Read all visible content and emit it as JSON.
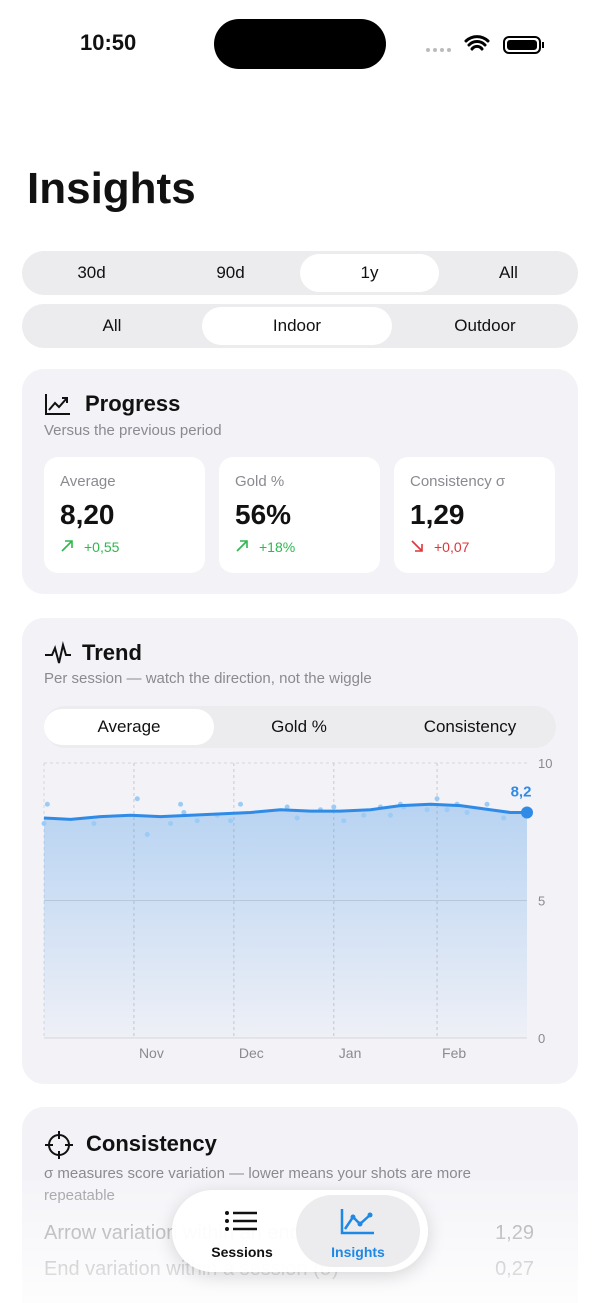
{
  "status": {
    "time": "10:50"
  },
  "header": {
    "title": "Insights"
  },
  "range_tabs": {
    "items": [
      "30d",
      "90d",
      "1y",
      "All"
    ],
    "selected": 2
  },
  "venue_tabs": {
    "items": [
      "All",
      "Indoor",
      "Outdoor"
    ],
    "selected": 1
  },
  "progress": {
    "title": "Progress",
    "subtitle": "Versus the previous period",
    "metrics": [
      {
        "label": "Average",
        "value": "8,20",
        "delta": "+0,55",
        "direction": "up"
      },
      {
        "label": "Gold %",
        "value": "56%",
        "delta": "+18%",
        "direction": "up"
      },
      {
        "label": "Consistency σ",
        "value": "1,29",
        "delta": "+0,07",
        "direction": "down"
      }
    ]
  },
  "trend": {
    "title": "Trend",
    "subtitle": "Per session — watch the direction, not the wiggle",
    "tabs": {
      "items": [
        "Average",
        "Gold %",
        "Consistency"
      ],
      "selected": 0
    }
  },
  "chart_data": {
    "type": "line",
    "x": [
      0,
      8,
      17,
      26,
      35,
      44,
      53,
      62,
      71,
      80,
      89,
      98,
      107,
      116,
      125,
      134,
      140,
      145
    ],
    "series": [
      {
        "color": "#2f8be6",
        "values": [
          8.0,
          7.95,
          8.05,
          8.1,
          8.05,
          8.1,
          8.15,
          8.2,
          8.3,
          8.25,
          8.25,
          8.3,
          8.45,
          8.5,
          8.45,
          8.3,
          8.2,
          8.2
        ]
      }
    ],
    "points": {
      "color": "#9ccbf5",
      "x": [
        0,
        1,
        15,
        28,
        31,
        38,
        41,
        42,
        46,
        52,
        56,
        59,
        73,
        76,
        83,
        87,
        90,
        96,
        101,
        104,
        107,
        108,
        115,
        118,
        121,
        124,
        127,
        133,
        138
      ],
      "y": [
        7.8,
        8.5,
        7.8,
        8.7,
        7.4,
        7.8,
        8.5,
        8.2,
        7.9,
        8.1,
        7.9,
        8.5,
        8.4,
        8.0,
        8.3,
        8.4,
        7.9,
        8.1,
        8.4,
        8.1,
        8.5,
        8.4,
        8.3,
        8.7,
        8.3,
        8.5,
        8.2,
        8.5,
        8.0
      ]
    },
    "end_point": {
      "x": 145,
      "value": 8.2,
      "label": "8,2"
    },
    "xlim": [
      0,
      145
    ],
    "xticks": [
      {
        "value": 27,
        "label": "Nov"
      },
      {
        "value": 57,
        "label": "Dec"
      },
      {
        "value": 87,
        "label": "Jan"
      },
      {
        "value": 118,
        "label": "Feb"
      }
    ],
    "ylim": [
      0,
      10
    ],
    "yticks": [
      0,
      5,
      10
    ],
    "grid": true
  },
  "consistency": {
    "title": "Consistency",
    "subtitle": "σ measures score variation — lower means your shots are more repeatable",
    "rows": [
      [
        "Arrow variation within an end",
        "1,29"
      ],
      [
        "End variation within a session (σ)",
        "0,27"
      ]
    ]
  },
  "tab_bar": {
    "items": [
      "Sessions",
      "Insights"
    ],
    "selected": 1
  }
}
